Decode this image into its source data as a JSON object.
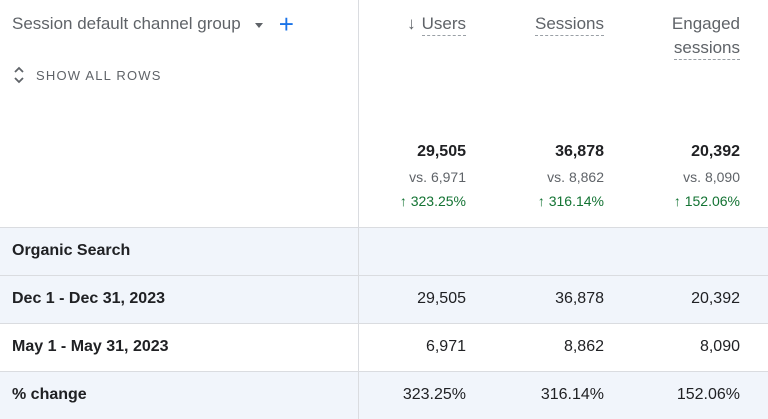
{
  "dimension": {
    "label": "Session default channel group",
    "add_icon": "plus-icon",
    "dropdown_icon": "caret-down-icon"
  },
  "show_all_rows": {
    "label": "SHOW ALL ROWS",
    "icon": "unfold-icon"
  },
  "columns": [
    {
      "label": "Users",
      "sorted": true,
      "sort_icon": "arrow-down-icon"
    },
    {
      "label_line1": "Sessions"
    },
    {
      "label_line1": "Engaged",
      "label_line2": "sessions"
    }
  ],
  "totals": [
    {
      "value": "29,505",
      "vs": "vs. 6,971",
      "change": "↑ 323.25%"
    },
    {
      "value": "36,878",
      "vs": "vs. 8,862",
      "change": "↑ 316.14%"
    },
    {
      "value": "20,392",
      "vs": "vs. 8,090",
      "change": "↑ 152.06%"
    }
  ],
  "group_row": {
    "label": "Organic Search"
  },
  "rows": [
    {
      "label": "Dec 1 - Dec 31, 2023",
      "values": [
        "29,505",
        "36,878",
        "20,392"
      ]
    },
    {
      "label": "May 1 - May 31, 2023",
      "values": [
        "6,971",
        "8,862",
        "8,090"
      ]
    },
    {
      "label": "% change",
      "values": [
        "323.25%",
        "316.14%",
        "152.06%"
      ]
    }
  ],
  "colors": {
    "accent": "#1a73e8",
    "positive": "#137333",
    "row_shade": "#f1f5fb",
    "border": "#dadce0"
  }
}
